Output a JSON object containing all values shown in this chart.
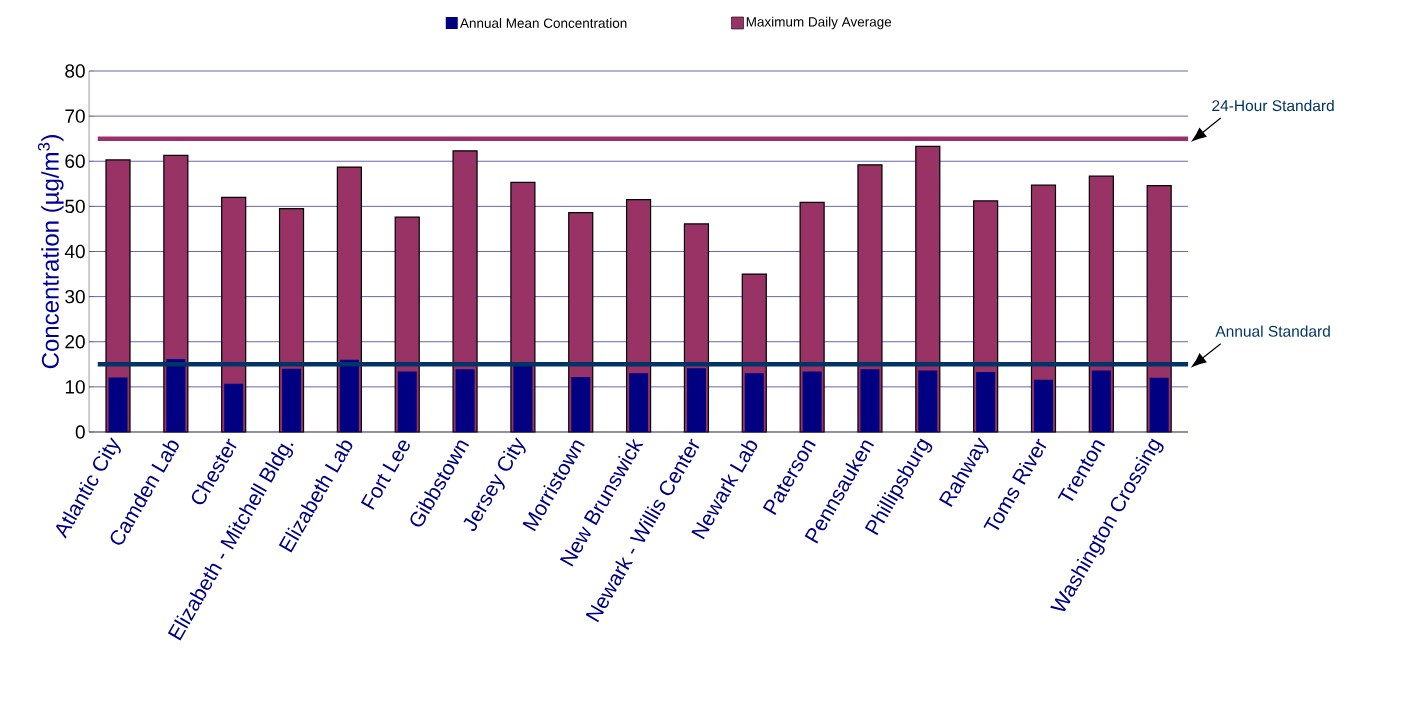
{
  "chart_data": {
    "type": "bar",
    "ylabel": "Concentration (µg/m$^{3}$)",
    "categories": [
      "Atlantic City",
      "Camden Lab",
      "Chester",
      "Elizabeth - Mitchell Bldg.",
      "Elizabeth Lab",
      "Fort Lee",
      "Gibbstown",
      "Jersey City",
      "Morristown",
      "New Brunswick",
      "Newark - Willis Center",
      "Newark Lab",
      "Paterson",
      "Pennsauken",
      "Phillipsburg",
      "Rahway",
      "Toms River",
      "Trenton",
      "Washington Crossing"
    ],
    "series": [
      {
        "name": "Annual Mean Concentration",
        "color": "#000080",
        "values": [
          12.1,
          16.2,
          10.7,
          14.0,
          16.0,
          13.4,
          13.9,
          15.0,
          12.2,
          13.0,
          14.1,
          13.0,
          13.4,
          13.9,
          13.6,
          13.3,
          11.6,
          13.6,
          12.0
        ]
      },
      {
        "name": "Maximum Daily Average",
        "color": "#993366",
        "values": [
          60.3,
          61.3,
          52.0,
          49.5,
          58.7,
          47.6,
          62.3,
          55.3,
          48.6,
          51.5,
          46.1,
          35.0,
          50.9,
          59.2,
          63.3,
          51.2,
          54.7,
          56.7,
          54.6
        ]
      }
    ],
    "ylim": [
      0,
      80
    ],
    "yticks": [
      0,
      10,
      20,
      30,
      40,
      50,
      60,
      70,
      80
    ],
    "grid": "y",
    "legend": "top",
    "ref_lines": [
      {
        "axis": "y",
        "value": 65,
        "label": "24-Hour Standard",
        "color": "#993366"
      },
      {
        "axis": "y",
        "value": 15,
        "label": "Annual Standard",
        "color": "#003366"
      }
    ]
  }
}
